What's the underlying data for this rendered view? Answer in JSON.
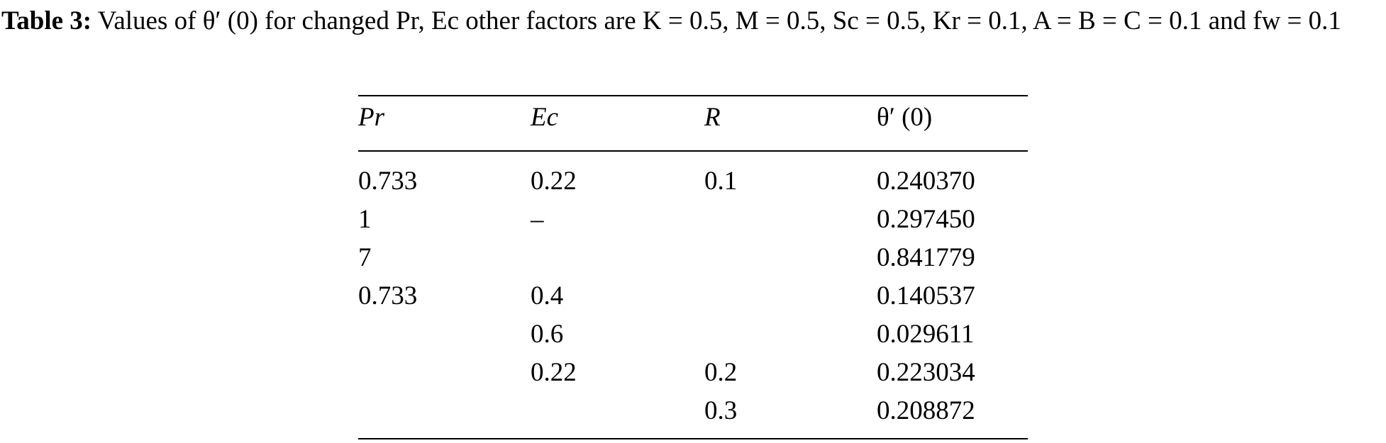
{
  "caption": {
    "label": "Table 3:",
    "text": "Values of θ′ (0) for changed Pr, Ec other factors are K = 0.5, M = 0.5, Sc = 0.5, Kr = 0.1, A = B = C = 0.1 and fw = 0.1"
  },
  "table": {
    "header": [
      "Pr",
      "Ec",
      "R",
      "θ′ (0)"
    ],
    "rows": [
      [
        "0.733",
        "0.22",
        "0.1",
        "0.240370"
      ],
      [
        "1",
        "–",
        null,
        "0.297450"
      ],
      [
        "7",
        null,
        null,
        "0.841779"
      ],
      [
        "0.733",
        "0.4",
        null,
        "0.140537"
      ],
      [
        null,
        "0.6",
        null,
        "0.029611"
      ],
      [
        null,
        "0.22",
        "0.2",
        "0.223034"
      ],
      [
        null,
        null,
        "0.3",
        "0.208872"
      ]
    ]
  }
}
